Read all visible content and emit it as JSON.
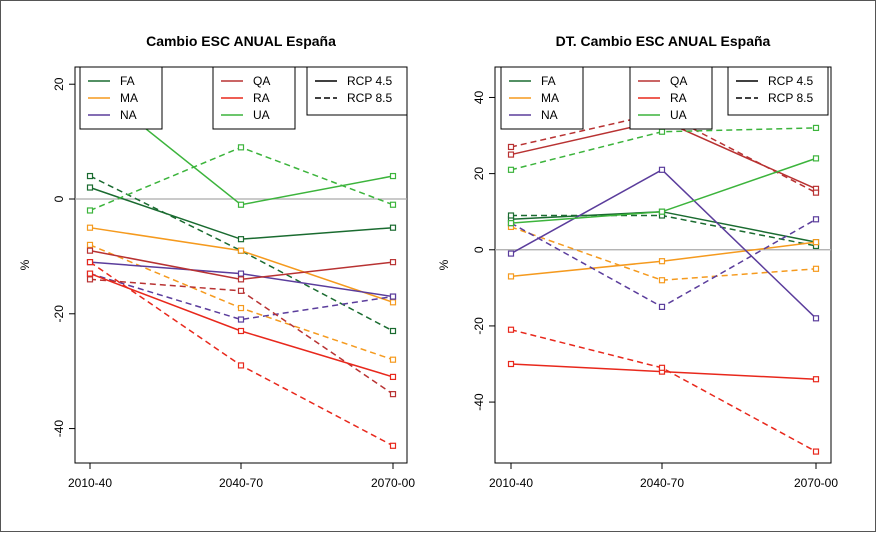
{
  "chart_data": [
    {
      "type": "line",
      "title": "Cambio ESC ANUAL España",
      "xlabel": "",
      "ylabel": "%",
      "categories": [
        "2010-40",
        "2040-70",
        "2070-00"
      ],
      "yticks": [
        -40,
        -20,
        0,
        20
      ],
      "ylim": [
        -46,
        23
      ],
      "reference_line": 0,
      "series": [
        {
          "name": "FA",
          "scenario": "RCP 4.5",
          "color": "#1a6b30",
          "values": [
            2,
            -7,
            -5
          ]
        },
        {
          "name": "FA",
          "scenario": "RCP 8.5",
          "color": "#1a6b30",
          "values": [
            4,
            -9,
            -23
          ]
        },
        {
          "name": "MA",
          "scenario": "RCP 4.5",
          "color": "#f59a1e",
          "values": [
            -5,
            -9,
            -18
          ]
        },
        {
          "name": "MA",
          "scenario": "RCP 8.5",
          "color": "#f59a1e",
          "values": [
            -8,
            -19,
            -28
          ]
        },
        {
          "name": "NA",
          "scenario": "RCP 4.5",
          "color": "#5b3d9c",
          "values": [
            -11,
            -13,
            -17
          ]
        },
        {
          "name": "NA",
          "scenario": "RCP 8.5",
          "color": "#5b3d9c",
          "values": [
            -13,
            -21,
            -17
          ]
        },
        {
          "name": "QA",
          "scenario": "RCP 4.5",
          "color": "#b83232",
          "values": [
            -9,
            -14,
            -11
          ]
        },
        {
          "name": "QA",
          "scenario": "RCP 8.5",
          "color": "#b83232",
          "values": [
            -14,
            -16,
            -34
          ]
        },
        {
          "name": "RA",
          "scenario": "RCP 4.5",
          "color": "#e8281c",
          "values": [
            -13,
            -23,
            -31
          ]
        },
        {
          "name": "RA",
          "scenario": "RCP 8.5",
          "color": "#e8281c",
          "values": [
            -11,
            -29,
            -43
          ]
        },
        {
          "name": "UA",
          "scenario": "RCP 4.5",
          "color": "#3cb43c",
          "values": [
            20,
            -1,
            4
          ]
        },
        {
          "name": "UA",
          "scenario": "RCP 8.5",
          "color": "#3cb43c",
          "values": [
            -2,
            9,
            -1
          ]
        }
      ]
    },
    {
      "type": "line",
      "title": "DT. Cambio ESC ANUAL España",
      "xlabel": "",
      "ylabel": "%",
      "categories": [
        "2010-40",
        "2040-70",
        "2070-00"
      ],
      "yticks": [
        -40,
        -20,
        0,
        20,
        40
      ],
      "ylim": [
        -56,
        48
      ],
      "reference_line": 0,
      "series": [
        {
          "name": "FA",
          "scenario": "RCP 4.5",
          "color": "#1a6b30",
          "values": [
            8,
            10,
            2
          ]
        },
        {
          "name": "FA",
          "scenario": "RCP 8.5",
          "color": "#1a6b30",
          "values": [
            9,
            9,
            1
          ]
        },
        {
          "name": "MA",
          "scenario": "RCP 4.5",
          "color": "#f59a1e",
          "values": [
            -7,
            -3,
            2
          ]
        },
        {
          "name": "MA",
          "scenario": "RCP 8.5",
          "color": "#f59a1e",
          "values": [
            6,
            -8,
            -5
          ]
        },
        {
          "name": "NA",
          "scenario": "RCP 4.5",
          "color": "#5b3d9c",
          "values": [
            -1,
            21,
            -18
          ]
        },
        {
          "name": "NA",
          "scenario": "RCP 8.5",
          "color": "#5b3d9c",
          "values": [
            7,
            -15,
            8
          ]
        },
        {
          "name": "QA",
          "scenario": "RCP 4.5",
          "color": "#b83232",
          "values": [
            25,
            34,
            16
          ]
        },
        {
          "name": "QA",
          "scenario": "RCP 8.5",
          "color": "#b83232",
          "values": [
            27,
            36,
            15
          ]
        },
        {
          "name": "RA",
          "scenario": "RCP 4.5",
          "color": "#e8281c",
          "values": [
            -30,
            -32,
            -34
          ]
        },
        {
          "name": "RA",
          "scenario": "RCP 8.5",
          "color": "#e8281c",
          "values": [
            -21,
            -31,
            -53
          ]
        },
        {
          "name": "UA",
          "scenario": "RCP 4.5",
          "color": "#3cb43c",
          "values": [
            7,
            10,
            24
          ]
        },
        {
          "name": "UA",
          "scenario": "RCP 8.5",
          "color": "#3cb43c",
          "values": [
            21,
            31,
            32
          ]
        }
      ]
    }
  ],
  "legend_groups": [
    [
      {
        "label": "FA",
        "color": "#1a6b30"
      },
      {
        "label": "MA",
        "color": "#f59a1e"
      },
      {
        "label": "NA",
        "color": "#5b3d9c"
      }
    ],
    [
      {
        "label": "QA",
        "color": "#b83232"
      },
      {
        "label": "RA",
        "color": "#e8281c"
      },
      {
        "label": "UA",
        "color": "#3cb43c"
      }
    ],
    [
      {
        "label": "RCP 4.5",
        "color": "#000000",
        "dashed": false
      },
      {
        "label": "RCP 8.5",
        "color": "#000000",
        "dashed": true
      }
    ]
  ],
  "colors": {
    "reference_line": "#aaaaaa",
    "axis": "#000000"
  }
}
